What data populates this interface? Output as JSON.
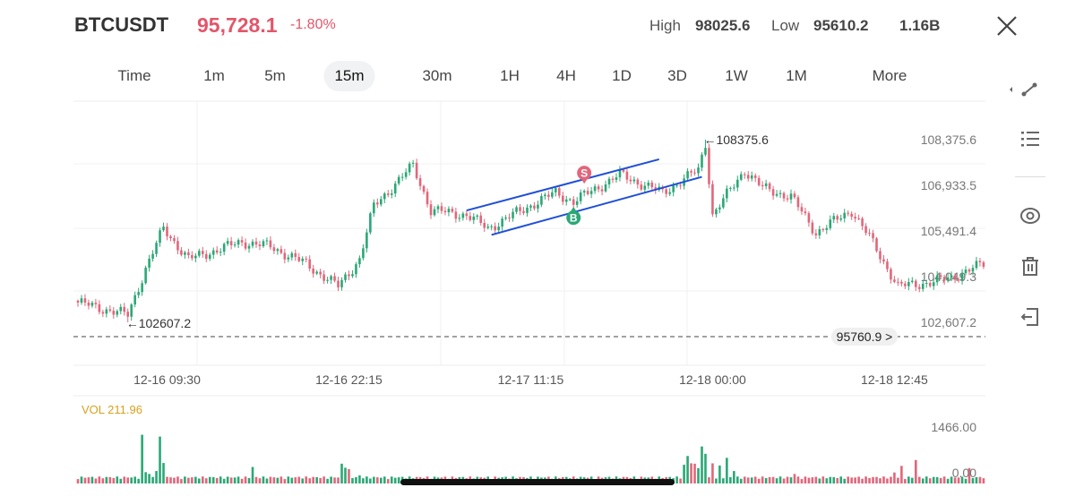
{
  "header": {
    "symbol": "BTCUSDT",
    "last_price": "95,728.1",
    "change_pct": "-1.80%",
    "high_label": "High",
    "high_value": "98025.6",
    "low_label": "Low",
    "low_value": "95610.2",
    "volume_24h": "1.16B"
  },
  "timeframes": [
    {
      "label": "Time"
    },
    {
      "label": "1m"
    },
    {
      "label": "5m"
    },
    {
      "label": "15m",
      "active": true
    },
    {
      "label": "30m"
    },
    {
      "label": "1H"
    },
    {
      "label": "4H"
    },
    {
      "label": "1D"
    },
    {
      "label": "3D"
    },
    {
      "label": "1W"
    },
    {
      "label": "1M"
    },
    {
      "label": "More"
    }
  ],
  "side_tools": [
    "draw-tool-icon",
    "list-icon",
    "eye-icon",
    "trash-icon",
    "exit-icon"
  ],
  "colors": {
    "up": "#2aa876",
    "down": "#e2667a",
    "trendline": "#1e4fd8",
    "vol_label": "#d9a020",
    "accent_red": "#e2566a"
  },
  "chart_data": {
    "type": "candlestick",
    "interval": "15m",
    "y_ticks": [
      "108,375.6",
      "106,933.5",
      "105,491.4",
      "104,049.3",
      "102,607.2"
    ],
    "y_tick_values": [
      108375.6,
      106933.5,
      105491.4,
      104049.3,
      102607.2
    ],
    "x_ticks": [
      {
        "label": "12-16 09:30",
        "index": 25
      },
      {
        "label": "12-16 22:15",
        "index": 76
      },
      {
        "label": "12-17 11:15",
        "index": 127
      },
      {
        "label": "12-18 00:00",
        "index": 178
      },
      {
        "label": "12-18 12:45",
        "index": 229
      }
    ],
    "candle_count": 255,
    "close_waypoints": [
      [
        0,
        103230
      ],
      [
        14,
        102840
      ],
      [
        19,
        104300
      ],
      [
        24,
        105575
      ],
      [
        31,
        104600
      ],
      [
        46,
        105150
      ],
      [
        54,
        105000
      ],
      [
        64,
        104450
      ],
      [
        73,
        103740
      ],
      [
        79,
        104600
      ],
      [
        83,
        106280
      ],
      [
        94,
        107560
      ],
      [
        99,
        106140
      ],
      [
        109,
        106000
      ],
      [
        115,
        105575
      ],
      [
        129,
        106420
      ],
      [
        134,
        106700
      ],
      [
        139,
        106420
      ],
      [
        152,
        107270
      ],
      [
        164,
        106700
      ],
      [
        174,
        107415
      ],
      [
        176,
        108263
      ],
      [
        178,
        106000
      ],
      [
        187,
        107415
      ],
      [
        192,
        106850
      ],
      [
        200,
        106570
      ],
      [
        207,
        105440
      ],
      [
        217,
        106140
      ],
      [
        222,
        105290
      ],
      [
        230,
        103740
      ],
      [
        240,
        103880
      ],
      [
        245,
        104020
      ],
      [
        254,
        104450
      ]
    ],
    "high_marker": {
      "label": "←108375.6",
      "value": 108375.6,
      "index": 176
    },
    "low_marker": {
      "label": "←102607.2",
      "value": 102607.2,
      "index": 14
    },
    "current_price_line": {
      "label": "95760.9 >",
      "value": 95760.9
    },
    "trendlines": [
      {
        "from": [
          109,
          106140
        ],
        "to": [
          163,
          107755
        ]
      },
      {
        "from": [
          116,
          105370
        ],
        "to": [
          175,
          107200
        ]
      }
    ],
    "trade_markers": [
      {
        "label": "S",
        "side": "sell",
        "index": 142,
        "price": 107270
      },
      {
        "label": "B",
        "side": "buy",
        "index": 139,
        "price": 105940
      }
    ],
    "volume": {
      "label": "VOL 211.96",
      "axis_max_label": "1466.00",
      "axis_min_label": "0.00",
      "axis_max": 1466.0,
      "base": 120,
      "spikes": [
        [
          18,
          1330
        ],
        [
          19,
          310
        ],
        [
          20,
          260
        ],
        [
          22,
          340
        ],
        [
          23,
          1280
        ],
        [
          24,
          560
        ],
        [
          49,
          450
        ],
        [
          74,
          540
        ],
        [
          75,
          430
        ],
        [
          76,
          390
        ],
        [
          79,
          220
        ],
        [
          170,
          510
        ],
        [
          171,
          750
        ],
        [
          172,
          550
        ],
        [
          173,
          540
        ],
        [
          174,
          420
        ],
        [
          175,
          1010
        ],
        [
          176,
          810
        ],
        [
          178,
          550
        ],
        [
          180,
          490
        ],
        [
          182,
          700
        ],
        [
          184,
          340
        ],
        [
          201,
          260
        ],
        [
          229,
          300
        ],
        [
          231,
          480
        ],
        [
          235,
          640
        ],
        [
          250,
          420
        ]
      ]
    }
  }
}
